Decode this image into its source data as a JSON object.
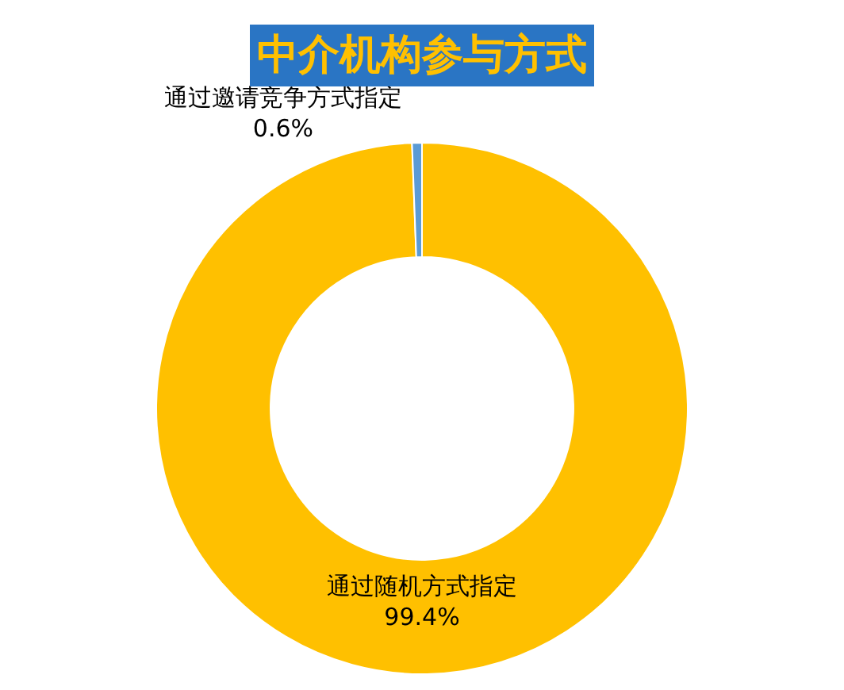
{
  "chart_data": {
    "type": "donut",
    "title": "中介机构参与方式",
    "categories": [
      "通过随机方式指定",
      "通过邀请竞争方式指定"
    ],
    "values": [
      99.4,
      0.6
    ],
    "value_labels": [
      "99.4%",
      "0.6%"
    ],
    "colors": [
      "#ffc000",
      "#5b9bd5"
    ]
  }
}
